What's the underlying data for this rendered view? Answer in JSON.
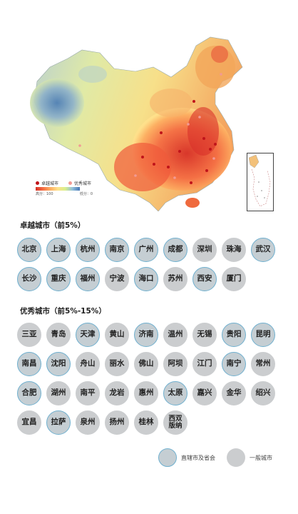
{
  "map": {
    "legend": [
      {
        "label": "卓越城市",
        "color": "#c0141a"
      },
      {
        "label": "优秀城市",
        "color": "#f29a94"
      }
    ],
    "scale": {
      "low": "高分：100",
      "high": "低分：0"
    },
    "colors": {
      "high": "#d73027",
      "mid": "#fee08b",
      "low": "#4575b4"
    }
  },
  "excellent": {
    "title": "卓越城市（前5%）",
    "cities": [
      {
        "name": "北京",
        "capital": true
      },
      {
        "name": "上海",
        "capital": true
      },
      {
        "name": "杭州",
        "capital": true
      },
      {
        "name": "南京",
        "capital": true
      },
      {
        "name": "广州",
        "capital": true
      },
      {
        "name": "成都",
        "capital": true
      },
      {
        "name": "深圳",
        "capital": false
      },
      {
        "name": "珠海",
        "capital": false
      },
      {
        "name": "武汉",
        "capital": true
      },
      {
        "name": "长沙",
        "capital": true
      },
      {
        "name": "重庆",
        "capital": true
      },
      {
        "name": "福州",
        "capital": true
      },
      {
        "name": "宁波",
        "capital": false
      },
      {
        "name": "海口",
        "capital": true
      },
      {
        "name": "苏州",
        "capital": false
      },
      {
        "name": "西安",
        "capital": true
      },
      {
        "name": "厦门",
        "capital": false
      }
    ]
  },
  "good": {
    "title": "优秀城市（前5%-15%）",
    "cities": [
      {
        "name": "三亚",
        "capital": false
      },
      {
        "name": "青岛",
        "capital": false
      },
      {
        "name": "天津",
        "capital": true
      },
      {
        "name": "黄山",
        "capital": false
      },
      {
        "name": "济南",
        "capital": true
      },
      {
        "name": "温州",
        "capital": false
      },
      {
        "name": "无锡",
        "capital": false
      },
      {
        "name": "贵阳",
        "capital": true
      },
      {
        "name": "昆明",
        "capital": true
      },
      {
        "name": "南昌",
        "capital": true
      },
      {
        "name": "沈阳",
        "capital": true
      },
      {
        "name": "舟山",
        "capital": false
      },
      {
        "name": "丽水",
        "capital": false
      },
      {
        "name": "佛山",
        "capital": false
      },
      {
        "name": "阿坝",
        "capital": false
      },
      {
        "name": "江门",
        "capital": false
      },
      {
        "name": "南宁",
        "capital": true
      },
      {
        "name": "常州",
        "capital": false
      },
      {
        "name": "合肥",
        "capital": true
      },
      {
        "name": "湖州",
        "capital": false
      },
      {
        "name": "南平",
        "capital": false
      },
      {
        "name": "龙岩",
        "capital": false
      },
      {
        "name": "惠州",
        "capital": false
      },
      {
        "name": "太原",
        "capital": true
      },
      {
        "name": "嘉兴",
        "capital": false
      },
      {
        "name": "金华",
        "capital": false
      },
      {
        "name": "绍兴",
        "capital": false
      },
      {
        "name": "宜昌",
        "capital": false
      },
      {
        "name": "拉萨",
        "capital": true
      },
      {
        "name": "泉州",
        "capital": false
      },
      {
        "name": "扬州",
        "capital": false
      },
      {
        "name": "桂林",
        "capital": false
      },
      {
        "name": "西双版纳",
        "capital": false
      }
    ]
  },
  "key": {
    "capital_label": "直辖市及省会",
    "general_label": "一般城市"
  }
}
